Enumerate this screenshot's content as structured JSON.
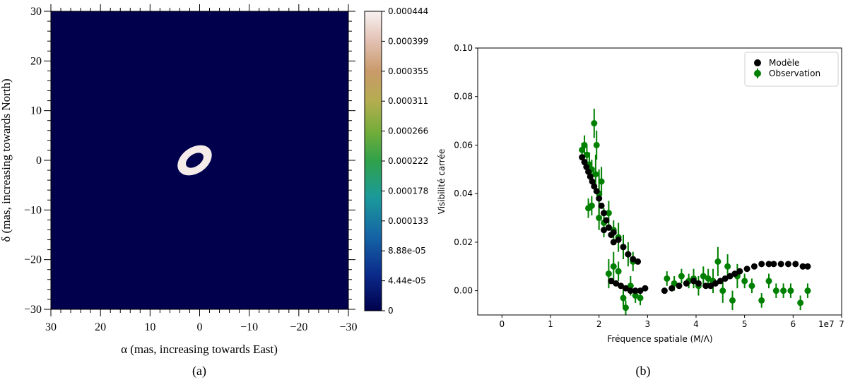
{
  "chart_data": [
    {
      "type": "heatmap",
      "panel_label": "(a)",
      "xlabel": "α (mas, increasing towards East)",
      "ylabel": "δ (mas, increasing towards North)",
      "xlim": [
        30,
        -30
      ],
      "ylim": [
        -30,
        30
      ],
      "x_ticks": [
        "30",
        "20",
        "10",
        "0",
        "−10",
        "−20",
        "−30"
      ],
      "y_ticks": [
        "30",
        "20",
        "10",
        "0",
        "−10",
        "−20",
        "−30"
      ],
      "colorbar_ticks": [
        "0.000444",
        "0.000399",
        "0.000355",
        "0.000311",
        "0.000266",
        "0.000222",
        "0.000178",
        "0.000133",
        "8.88e-05",
        "4.44e-05",
        "0"
      ],
      "colorbar_range": [
        0,
        0.000444
      ],
      "background_color": "#00004c",
      "ring": {
        "center_x_mas": 1.0,
        "center_y_mas": 0.0,
        "outer_semi_major_mas": 3.8,
        "outer_semi_minor_mas": 2.6,
        "inner_semi_major_mas": 2.0,
        "inner_semi_minor_mas": 1.2,
        "tilt_deg": 35,
        "color": "#f5ecea"
      }
    },
    {
      "type": "scatter",
      "panel_label": "(b)",
      "xlabel": "Fréquence spatiale (M/Λ)",
      "ylabel": "Visibilité carrée",
      "x_multiplier": "1e7",
      "xlim": [
        -0.5,
        7
      ],
      "ylim": [
        -0.01,
        0.1
      ],
      "x_ticks": [
        0,
        1,
        2,
        3,
        4,
        5,
        6,
        7
      ],
      "y_ticks": [
        "0.00",
        "0.02",
        "0.04",
        "0.06",
        "0.08",
        "0.10"
      ],
      "legend_position": "top-right",
      "series": [
        {
          "name": "Modèle",
          "color": "#000000",
          "points": [
            [
              1.65,
              0.055
            ],
            [
              1.7,
              0.053
            ],
            [
              1.74,
              0.051
            ],
            [
              1.78,
              0.049
            ],
            [
              1.82,
              0.047
            ],
            [
              1.86,
              0.045
            ],
            [
              1.9,
              0.043
            ],
            [
              1.95,
              0.041
            ],
            [
              2.0,
              0.038
            ],
            [
              2.05,
              0.035
            ],
            [
              2.1,
              0.032
            ],
            [
              2.15,
              0.029
            ],
            [
              2.2,
              0.026
            ],
            [
              2.25,
              0.023
            ],
            [
              2.3,
              0.02
            ],
            [
              2.1,
              0.025
            ],
            [
              2.2,
              0.026
            ],
            [
              2.3,
              0.024
            ],
            [
              2.4,
              0.021
            ],
            [
              2.5,
              0.018
            ],
            [
              2.6,
              0.015
            ],
            [
              2.7,
              0.013
            ],
            [
              2.8,
              0.012
            ],
            [
              2.25,
              0.004
            ],
            [
              2.35,
              0.003
            ],
            [
              2.45,
              0.002
            ],
            [
              2.55,
              0.001
            ],
            [
              2.65,
              0.0
            ],
            [
              2.75,
              0.0
            ],
            [
              2.85,
              0.0
            ],
            [
              2.95,
              0.001
            ],
            [
              3.35,
              0.0
            ],
            [
              3.5,
              0.001
            ],
            [
              3.65,
              0.002
            ],
            [
              3.8,
              0.003
            ],
            [
              3.95,
              0.004
            ],
            [
              4.05,
              0.003
            ],
            [
              4.2,
              0.002
            ],
            [
              4.3,
              0.002
            ],
            [
              4.4,
              0.003
            ],
            [
              4.5,
              0.004
            ],
            [
              4.6,
              0.005
            ],
            [
              4.7,
              0.006
            ],
            [
              4.8,
              0.007
            ],
            [
              4.9,
              0.008
            ],
            [
              5.05,
              0.009
            ],
            [
              5.2,
              0.01
            ],
            [
              5.35,
              0.011
            ],
            [
              5.5,
              0.011
            ],
            [
              5.6,
              0.011
            ],
            [
              5.75,
              0.011
            ],
            [
              5.9,
              0.011
            ],
            [
              6.05,
              0.011
            ],
            [
              6.2,
              0.01
            ],
            [
              6.3,
              0.01
            ]
          ]
        },
        {
          "name": "Observation",
          "color": "#008000",
          "points": [
            [
              1.65,
              0.058,
              0.003
            ],
            [
              1.7,
              0.06,
              0.004
            ],
            [
              1.75,
              0.056,
              0.004
            ],
            [
              1.8,
              0.052,
              0.005
            ],
            [
              1.85,
              0.05,
              0.004
            ],
            [
              1.9,
              0.069,
              0.006
            ],
            [
              1.93,
              0.048,
              0.008
            ],
            [
              1.95,
              0.06,
              0.006
            ],
            [
              2.0,
              0.04,
              0.01
            ],
            [
              2.05,
              0.045,
              0.006
            ],
            [
              1.78,
              0.034,
              0.004
            ],
            [
              1.85,
              0.035,
              0.004
            ],
            [
              2.0,
              0.03,
              0.005
            ],
            [
              2.1,
              0.028,
              0.006
            ],
            [
              2.2,
              0.032,
              0.005
            ],
            [
              2.3,
              0.025,
              0.004
            ],
            [
              2.4,
              0.022,
              0.006
            ],
            [
              2.5,
              0.018,
              0.005
            ],
            [
              2.6,
              0.015,
              0.005
            ],
            [
              2.7,
              0.012,
              0.004
            ],
            [
              2.2,
              0.007,
              0.006
            ],
            [
              2.3,
              0.01,
              0.006
            ],
            [
              2.4,
              0.008,
              0.004
            ],
            [
              2.5,
              -0.003,
              0.004
            ],
            [
              2.55,
              -0.007,
              0.003
            ],
            [
              2.65,
              0.002,
              0.004
            ],
            [
              2.75,
              -0.002,
              0.003
            ],
            [
              2.85,
              -0.003,
              0.003
            ],
            [
              3.4,
              0.005,
              0.003
            ],
            [
              3.55,
              0.003,
              0.003
            ],
            [
              3.7,
              0.006,
              0.003
            ],
            [
              3.85,
              0.004,
              0.003
            ],
            [
              3.95,
              0.005,
              0.004
            ],
            [
              4.05,
              0.002,
              0.004
            ],
            [
              4.15,
              0.006,
              0.004
            ],
            [
              4.25,
              0.005,
              0.004
            ],
            [
              4.35,
              0.004,
              0.005
            ],
            [
              4.45,
              0.012,
              0.006
            ],
            [
              4.55,
              0.0,
              0.005
            ],
            [
              4.65,
              0.01,
              0.005
            ],
            [
              4.75,
              -0.004,
              0.004
            ],
            [
              4.85,
              0.006,
              0.005
            ],
            [
              5.0,
              0.004,
              0.003
            ],
            [
              5.15,
              0.002,
              0.003
            ],
            [
              5.35,
              -0.004,
              0.003
            ],
            [
              5.5,
              0.004,
              0.003
            ],
            [
              5.65,
              0.0,
              0.003
            ],
            [
              5.8,
              0.0,
              0.003
            ],
            [
              5.95,
              0.0,
              0.003
            ],
            [
              6.15,
              -0.005,
              0.003
            ],
            [
              6.3,
              0.0,
              0.003
            ]
          ]
        }
      ]
    }
  ]
}
